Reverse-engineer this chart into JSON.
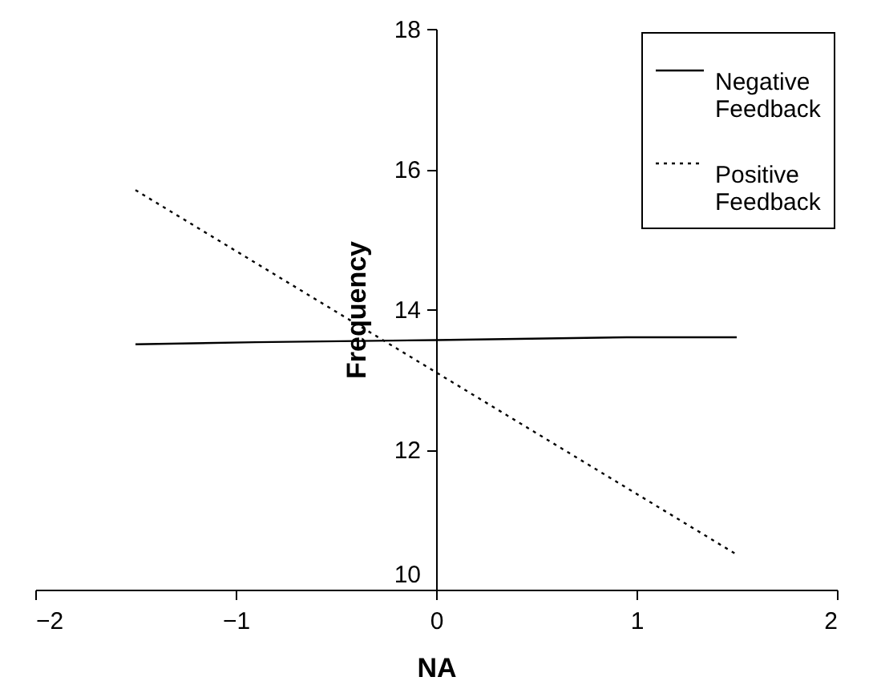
{
  "chart_data": {
    "type": "line",
    "xlabel": "NA",
    "ylabel": "Frequency",
    "xlim": [
      -2,
      2
    ],
    "xticks": [
      -2,
      -1,
      0,
      1,
      2
    ],
    "ylim": [
      10,
      18
    ],
    "yticks": [
      10,
      12,
      14,
      16,
      18
    ],
    "grid": false,
    "legend": "top right",
    "marker": "none",
    "series": [
      {
        "name": "Negative Feedback",
        "color": "#000000",
        "line_style": "solid",
        "x": [
          -1.5,
          -0.9,
          0,
          0.95,
          1.5
        ],
        "values": [
          13.5,
          13.53,
          13.56,
          13.6,
          13.6
        ]
      },
      {
        "name": "Positive Feedback",
        "color": "#000000",
        "line_style": "dotted",
        "x": [
          -1.5,
          0,
          1.5
        ],
        "values": [
          15.7,
          13.1,
          10.5
        ]
      }
    ]
  }
}
